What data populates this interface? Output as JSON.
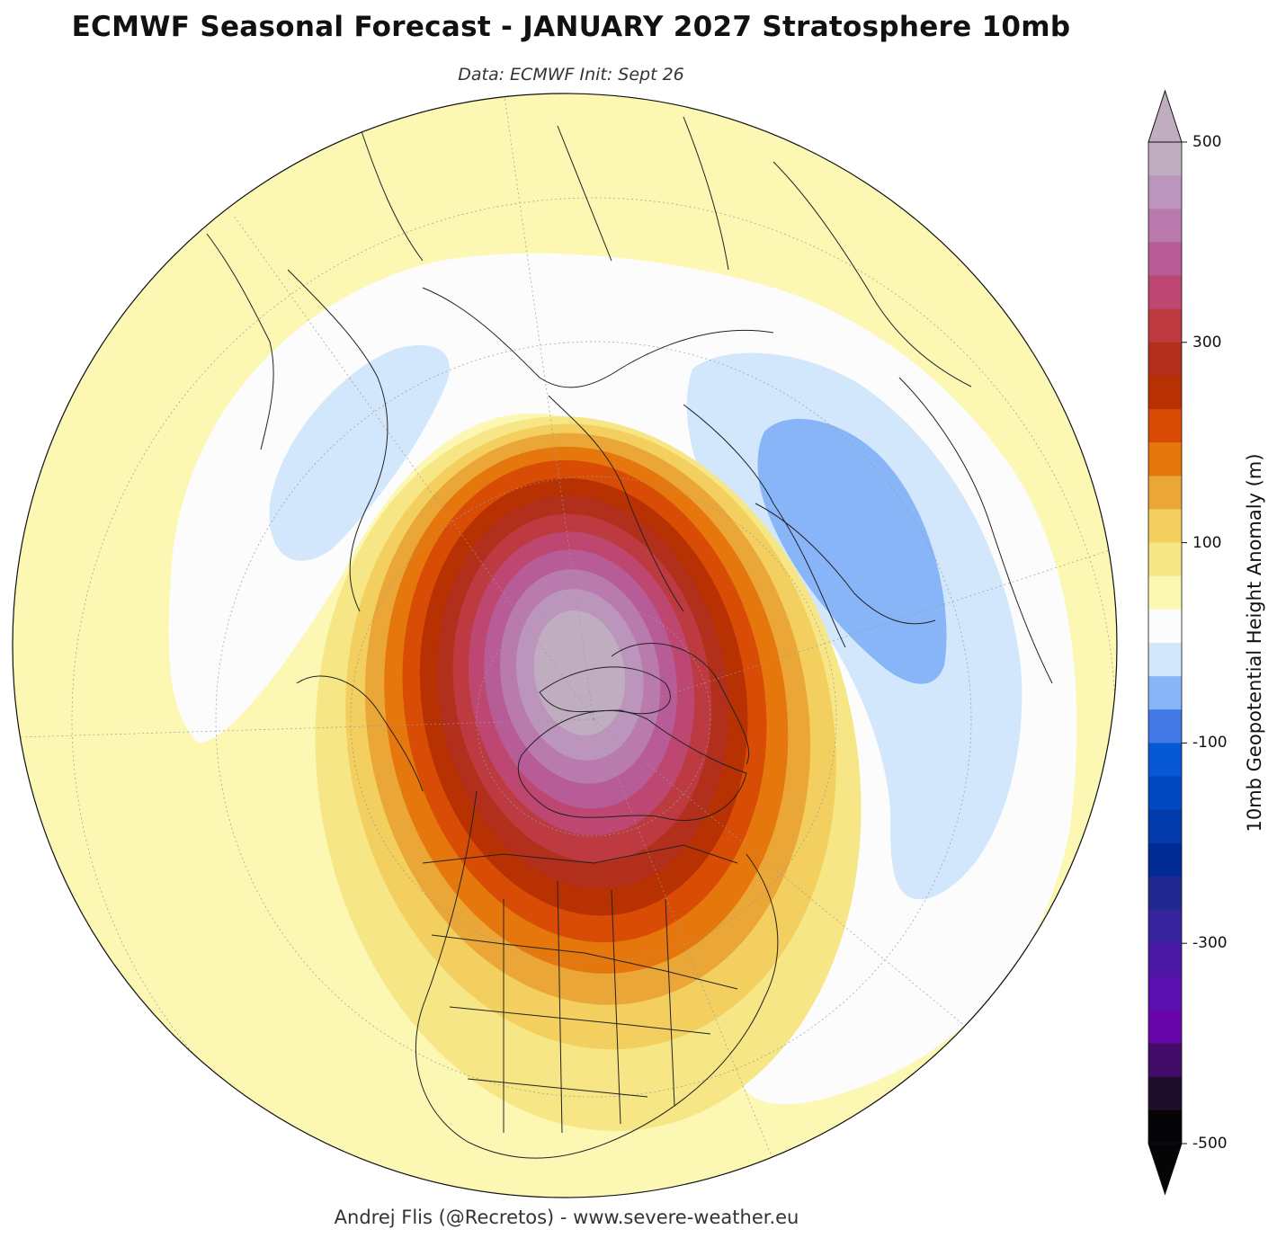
{
  "title": "ECMWF Seasonal Forecast -  JANUARY 2027 Stratosphere 10mb",
  "subtitle": "Data: ECMWF   Init: Sept 26",
  "credit": "Andrej Flis (@Recretos) - www.severe-weather.eu",
  "colorbar": {
    "label": "10mb Geopotential Height Anomaly (m)",
    "ticks": [
      "500",
      "300",
      "100",
      "-100",
      "-300",
      "-500"
    ],
    "min": -500,
    "max": 500,
    "colors_top_to_bottom": [
      "#c0aec0",
      "#bc95bd",
      "#b97aae",
      "#b75c96",
      "#bd4770",
      "#bd3a40",
      "#b22f1c",
      "#b73102",
      "#d84c05",
      "#e5770d",
      "#eba638",
      "#f2cf5e",
      "#f6e685",
      "#fcf8b4",
      "#fcfcfc",
      "#d3e7fc",
      "#88b5f8",
      "#4279e6",
      "#0658d5",
      "#0249c1",
      "#023ba9",
      "#002b95",
      "#21288f",
      "#37239c",
      "#4a18a5",
      "#5a10ae",
      "#6705a8",
      "#410b67",
      "#1e0e2a",
      "#050407"
    ]
  },
  "map": {
    "projection": "North Polar Stereographic",
    "field": "10mb geopotential height anomaly",
    "features": [
      {
        "name": "positive anomaly core",
        "region": "Canadian Arctic / Canada",
        "value_m": 500
      },
      {
        "name": "negative anomaly",
        "region": "Eastern Europe / Russia",
        "value_m": -75
      },
      {
        "name": "negative anomaly",
        "region": "East Asia",
        "value_m": -50
      }
    ]
  }
}
